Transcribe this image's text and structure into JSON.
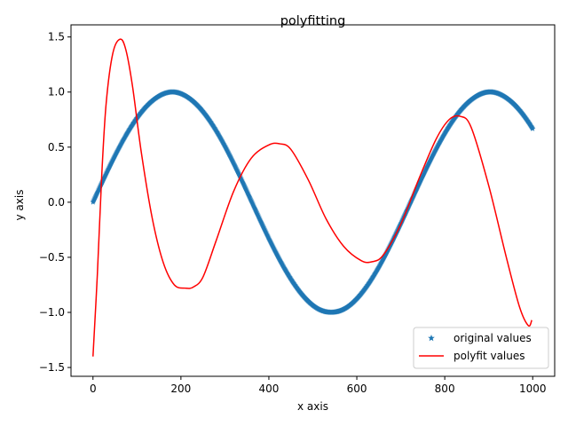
{
  "chart_data": {
    "type": "line",
    "title": "polyfitting",
    "xlabel": "x axis",
    "ylabel": "y axis",
    "xlim": [
      -50,
      1050
    ],
    "ylim": [
      -1.58,
      1.61
    ],
    "xticks": [
      0,
      200,
      400,
      600,
      800,
      1000
    ],
    "xtick_labels": [
      "0",
      "200",
      "400",
      "600",
      "800",
      "1000"
    ],
    "yticks": [
      -1.5,
      -1.0,
      -0.5,
      0.0,
      0.5,
      1.0,
      1.5
    ],
    "ytick_labels": [
      "−1.5",
      "−1.0",
      "−0.5",
      "0.0",
      "0.5",
      "1.0",
      "1.5"
    ],
    "grid": false,
    "legend_position": "lower-right",
    "series": [
      {
        "name": "original values",
        "marker": "star",
        "color": "#1f77b4",
        "function": "y = sin(x / 115)",
        "x_range": [
          0,
          1000
        ]
      },
      {
        "name": "polyfit values",
        "style": "line",
        "color": "#ff0000",
        "x": [
          0,
          10,
          20,
          30,
          45,
          62,
          75,
          90,
          110,
          135,
          160,
          185,
          210,
          228,
          250,
          280,
          320,
          360,
          400,
          425,
          450,
          490,
          530,
          570,
          610,
          635,
          660,
          700,
          740,
          780,
          810,
          835,
          860,
          900,
          940,
          970,
          990,
          998
        ],
        "y": [
          -1.4,
          -0.65,
          0.25,
          0.9,
          1.35,
          1.48,
          1.38,
          1.05,
          0.45,
          -0.15,
          -0.55,
          -0.75,
          -0.78,
          -0.77,
          -0.68,
          -0.35,
          0.1,
          0.4,
          0.52,
          0.53,
          0.48,
          0.2,
          -0.15,
          -0.4,
          -0.53,
          -0.54,
          -0.48,
          -0.2,
          0.2,
          0.57,
          0.75,
          0.78,
          0.68,
          0.15,
          -0.5,
          -0.95,
          -1.12,
          -1.07
        ]
      }
    ]
  }
}
